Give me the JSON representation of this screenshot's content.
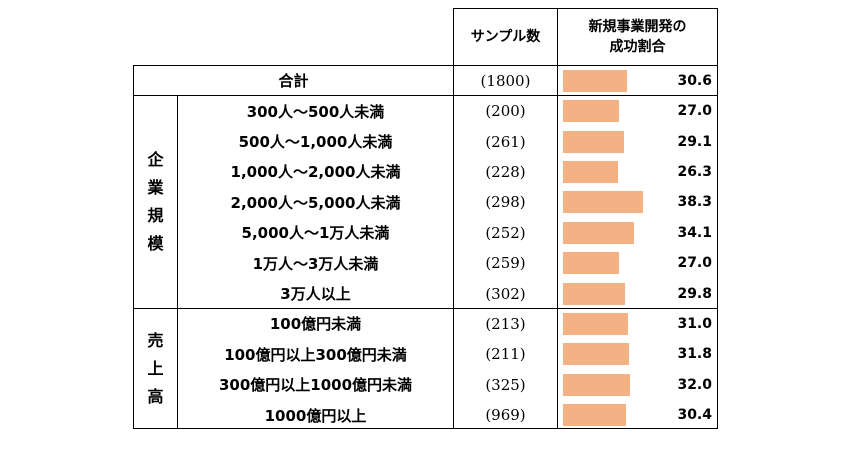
{
  "header": {
    "sample_label": "サンプル数",
    "rate_label_line1": "新規事業開発の",
    "rate_label_line2": "成功割合"
  },
  "groups": [
    {
      "label": "企業規模",
      "chars": [
        "企",
        "業",
        "規",
        "模"
      ]
    },
    {
      "label": "売上高",
      "chars": [
        "売",
        "上",
        "高"
      ]
    }
  ],
  "rows": [
    {
      "label": "合計",
      "count": "(1800)",
      "value": "30.6"
    },
    {
      "label": "300人～500人未満",
      "count": "(200)",
      "value": "27.0"
    },
    {
      "label": "500人～1,000人未満",
      "count": "(261)",
      "value": "29.1"
    },
    {
      "label": "1,000人～2,000人未満",
      "count": "(228)",
      "value": "26.3"
    },
    {
      "label": "2,000人～5,000人未満",
      "count": "(298)",
      "value": "38.3"
    },
    {
      "label": "5,000人～1万人未満",
      "count": "(252)",
      "value": "34.1"
    },
    {
      "label": "1万人～3万人未満",
      "count": "(259)",
      "value": "27.0"
    },
    {
      "label": "3万人以上",
      "count": "(302)",
      "value": "29.8"
    },
    {
      "label": "100億円未満",
      "count": "(213)",
      "value": "31.0"
    },
    {
      "label": "100億円以上300億円未満",
      "count": "(211)",
      "value": "31.8"
    },
    {
      "label": "300億円以上1000億円未満",
      "count": "(325)",
      "value": "32.0"
    },
    {
      "label": "1000億円以上",
      "count": "(969)",
      "value": "30.4"
    }
  ],
  "chart_data": {
    "type": "bar",
    "categories": [
      "合計",
      "300人～500人未満",
      "500人～1,000人未満",
      "1,000人～2,000人未満",
      "2,000人～5,000人未満",
      "5,000人～1万人未満",
      "1万人～3万人未満",
      "3万人以上",
      "100億円未満",
      "100億円以上300億円未満",
      "300億円以上1000億円未満",
      "1000億円以上"
    ],
    "values": [
      30.6,
      27.0,
      29.1,
      26.3,
      38.3,
      34.1,
      27.0,
      29.8,
      31.0,
      31.8,
      32.0,
      30.4
    ],
    "counts": [
      1800,
      200,
      261,
      228,
      298,
      252,
      259,
      302,
      213,
      211,
      325,
      969
    ],
    "bar_color": "#f4b183"
  }
}
